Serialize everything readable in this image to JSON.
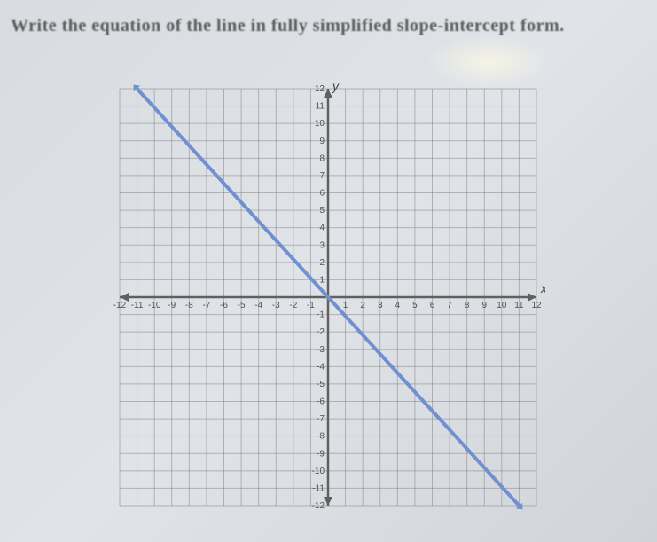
{
  "title": "Write the equation of the line in fully simplified slope-intercept form.",
  "chart": {
    "type": "line",
    "xlim": [
      -12,
      12
    ],
    "ylim": [
      -12,
      12
    ],
    "tick_step": 1,
    "x_axis_label": "x",
    "y_axis_label": "y",
    "grid_color": "#808080",
    "axis_color": "#606060",
    "background_color": "#e0e4e8",
    "line": {
      "color": "#7090d0",
      "width": 4,
      "points": [
        {
          "x": -11,
          "y": 12
        },
        {
          "x": 11,
          "y": -12
        }
      ]
    },
    "x_ticks": [
      -12,
      -11,
      -10,
      -9,
      -8,
      -7,
      -6,
      -5,
      -4,
      -3,
      -2,
      -1,
      1,
      2,
      3,
      4,
      5,
      6,
      7,
      8,
      9,
      10,
      11,
      12
    ],
    "y_ticks": [
      12,
      11,
      10,
      9,
      8,
      7,
      6,
      5,
      4,
      3,
      2,
      1,
      -1,
      -2,
      -3,
      -4,
      -5,
      -6,
      -7,
      -8,
      -9,
      -10,
      -11,
      -12
    ],
    "label_fontsize": 10,
    "title_fontsize": 20
  }
}
